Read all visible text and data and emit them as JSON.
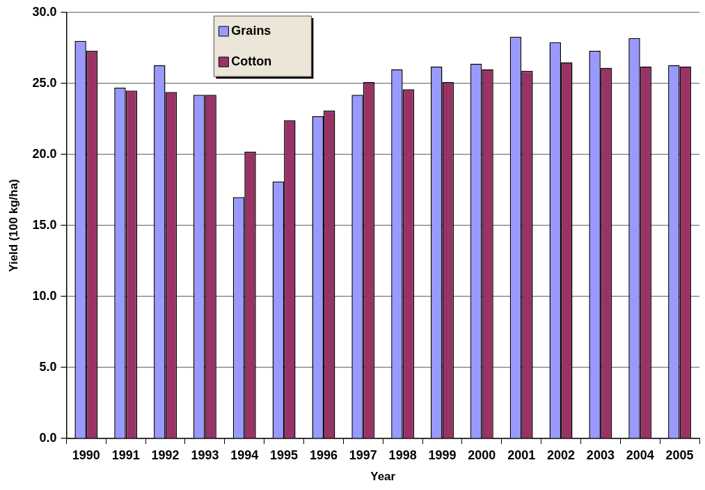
{
  "chart_data": {
    "type": "bar",
    "xlabel": "Year",
    "ylabel": "Yield (100 kg/ha)",
    "categories": [
      "1990",
      "1991",
      "1992",
      "1993",
      "1994",
      "1995",
      "1996",
      "1997",
      "1998",
      "1999",
      "2000",
      "2001",
      "2002",
      "2003",
      "2004",
      "2005"
    ],
    "series": [
      {
        "name": "Grains",
        "color": "#9999ff",
        "values": [
          28.0,
          24.7,
          26.3,
          24.2,
          17.0,
          18.1,
          22.7,
          24.2,
          26.0,
          26.2,
          26.4,
          28.3,
          27.9,
          27.3,
          28.2,
          26.3
        ]
      },
      {
        "name": "Cotton",
        "color": "#993366",
        "values": [
          27.3,
          24.5,
          24.4,
          24.2,
          20.2,
          22.4,
          23.1,
          25.1,
          24.6,
          25.1,
          26.0,
          25.9,
          26.5,
          26.1,
          26.2,
          26.2
        ]
      }
    ],
    "ylim": [
      0,
      30
    ],
    "yticks": [
      {
        "value": 0,
        "label": "0.0"
      },
      {
        "value": 5,
        "label": "5.0"
      },
      {
        "value": 10,
        "label": "10.0"
      },
      {
        "value": 15,
        "label": "15.0"
      },
      {
        "value": 20,
        "label": "20.0"
      },
      {
        "value": 25,
        "label": "25.0"
      },
      {
        "value": 30,
        "label": "30.0"
      }
    ],
    "grid": "y",
    "legend": "top left"
  }
}
